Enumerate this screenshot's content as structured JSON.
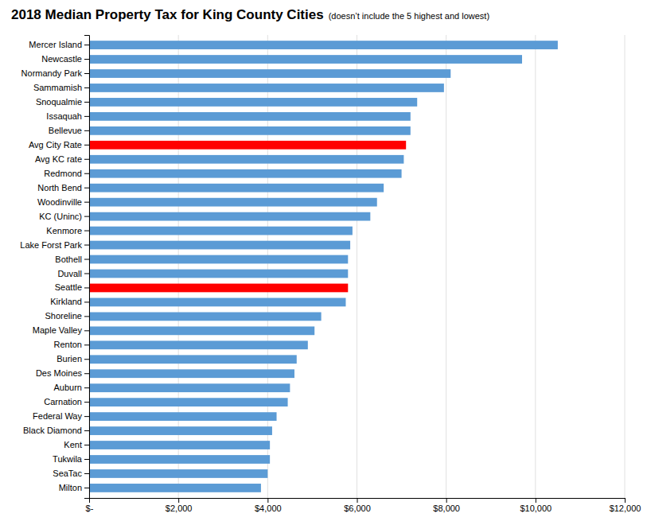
{
  "chart_data": {
    "type": "bar",
    "orientation": "horizontal",
    "title": "2018 Median Property Tax for King County Cities",
    "subtitle": "(doesn’t include the 5 highest and lowest)",
    "categories": [
      "Mercer Island",
      "Newcastle",
      "Normandy Park",
      "Sammamish",
      "Snoqualmie",
      "Issaquah",
      "Bellevue",
      "Avg City Rate",
      "Avg KC rate",
      "Redmond",
      "North Bend",
      "Woodinville",
      "KC (Uninc)",
      "Kenmore",
      "Lake Forst Park",
      "Bothell",
      "Duvall",
      "Seattle",
      "Kirkland",
      "Shoreline",
      "Maple Valley",
      "Renton",
      "Burien",
      "Des Moines",
      "Auburn",
      "Carnation",
      "Federal Way",
      "Black Diamond",
      "Kent",
      "Tukwila",
      "SeaTac",
      "Milton"
    ],
    "values": [
      10500,
      9700,
      8100,
      7950,
      7350,
      7200,
      7200,
      7100,
      7050,
      7000,
      6600,
      6450,
      6300,
      5900,
      5850,
      5800,
      5800,
      5800,
      5750,
      5200,
      5050,
      4900,
      4650,
      4600,
      4500,
      4450,
      4200,
      4100,
      4050,
      4050,
      4000,
      3850
    ],
    "colors": [
      "#5B9BD5",
      "#5B9BD5",
      "#5B9BD5",
      "#5B9BD5",
      "#5B9BD5",
      "#5B9BD5",
      "#5B9BD5",
      "#FF0000",
      "#5B9BD5",
      "#5B9BD5",
      "#5B9BD5",
      "#5B9BD5",
      "#5B9BD5",
      "#5B9BD5",
      "#5B9BD5",
      "#5B9BD5",
      "#5B9BD5",
      "#FF0000",
      "#5B9BD5",
      "#5B9BD5",
      "#5B9BD5",
      "#5B9BD5",
      "#5B9BD5",
      "#5B9BD5",
      "#5B9BD5",
      "#5B9BD5",
      "#5B9BD5",
      "#5B9BD5",
      "#5B9BD5",
      "#5B9BD5",
      "#5B9BD5",
      "#5B9BD5"
    ],
    "xlim": [
      0,
      12000
    ],
    "xticks": [
      {
        "value": 0,
        "label": "$-"
      },
      {
        "value": 2000,
        "label": "$2,000"
      },
      {
        "value": 4000,
        "label": "$4,000"
      },
      {
        "value": 6000,
        "label": "$6,000"
      },
      {
        "value": 8000,
        "label": "$8,000"
      },
      {
        "value": 10000,
        "label": "$10,000"
      },
      {
        "value": 12000,
        "label": "$12,000"
      }
    ],
    "grid": true
  }
}
